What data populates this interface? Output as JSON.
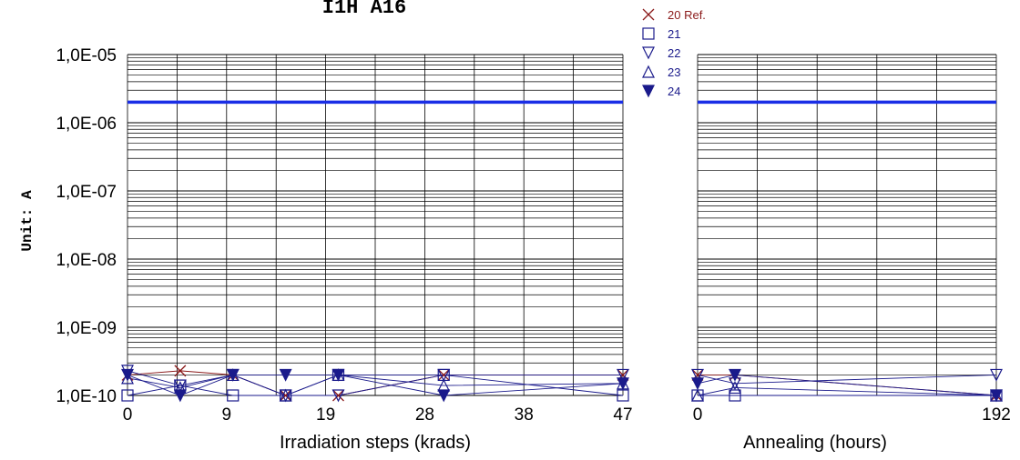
{
  "chart_data": {
    "type": "scatter",
    "title": "I1H A16",
    "ylabel": "Unit: A",
    "y_scale": "log",
    "ylim": [
      1e-10,
      1e-05
    ],
    "y_ticks": [
      {
        "value": 1e-05,
        "label": "1,0E-05"
      },
      {
        "value": 1e-06,
        "label": "1,0E-06"
      },
      {
        "value": 1e-07,
        "label": "1,0E-07"
      },
      {
        "value": 1e-08,
        "label": "1,0E-08"
      },
      {
        "value": 1e-09,
        "label": "1,0E-09"
      },
      {
        "value": 1e-10,
        "label": "1,0E-10"
      }
    ],
    "grid": true,
    "legend_position": "top-center",
    "limit_line": {
      "value": 2e-06,
      "color": "#1a2ee6"
    },
    "panels": [
      {
        "id": "irradiation",
        "xlabel": "Irradiation steps   (krads)",
        "xlim": [
          0,
          47
        ],
        "x_ticks": [
          {
            "value": 0,
            "label": "0"
          },
          {
            "value": 9.4,
            "label": "9"
          },
          {
            "value": 18.8,
            "label": "19"
          },
          {
            "value": 28.2,
            "label": "28"
          },
          {
            "value": 37.6,
            "label": "38"
          },
          {
            "value": 47,
            "label": "47"
          }
        ],
        "x": [
          0,
          5,
          10,
          15,
          20,
          30,
          47
        ],
        "series": [
          {
            "name": "20 Ref.",
            "marker": "x",
            "color": "#8b1a1a",
            "values": [
              2e-10,
              2.3e-10,
              2e-10,
              1e-10,
              1e-10,
              2e-10,
              2e-10
            ]
          },
          {
            "name": "21",
            "marker": "square",
            "color": "#1a1a8b",
            "values": [
              1e-10,
              1.4e-10,
              1e-10,
              1e-10,
              2e-10,
              2e-10,
              1e-10
            ]
          },
          {
            "name": "22",
            "marker": "triangle-down",
            "color": "#1a1a8b",
            "values": [
              2.3e-10,
              1.4e-10,
              2e-10,
              1e-10,
              1e-10,
              2e-10,
              2e-10
            ]
          },
          {
            "name": "23",
            "marker": "triangle-up",
            "color": "#1a1a8b",
            "values": [
              1.8e-10,
              1.3e-10,
              2e-10,
              1e-10,
              2e-10,
              1.4e-10,
              1.5e-10
            ]
          },
          {
            "name": "24",
            "marker": "triangle-down-filled",
            "color": "#1a1a8b",
            "values": [
              2e-10,
              1e-10,
              2e-10,
              2e-10,
              2e-10,
              1e-10,
              1.5e-10
            ]
          }
        ]
      },
      {
        "id": "annealing",
        "xlabel": "Annealing   (hours)",
        "xlim": [
          0,
          192
        ],
        "x_ticks": [
          {
            "value": 0,
            "label": "0"
          },
          {
            "value": 192,
            "label": "192"
          }
        ],
        "x": [
          0,
          24,
          192
        ],
        "series": [
          {
            "name": "20 Ref.",
            "marker": "x",
            "color": "#8b1a1a",
            "values": [
              2e-10,
              2e-10,
              1e-10
            ]
          },
          {
            "name": "21",
            "marker": "square",
            "color": "#1a1a8b",
            "values": [
              1e-10,
              1e-10,
              1e-10
            ]
          },
          {
            "name": "22",
            "marker": "triangle-down",
            "color": "#1a1a8b",
            "values": [
              2e-10,
              1.5e-10,
              2e-10
            ]
          },
          {
            "name": "23",
            "marker": "triangle-up",
            "color": "#1a1a8b",
            "values": [
              1e-10,
              1.3e-10,
              1e-10
            ]
          },
          {
            "name": "24",
            "marker": "triangle-down-filled",
            "color": "#1a1a8b",
            "values": [
              1.5e-10,
              2e-10,
              1e-10
            ]
          }
        ]
      }
    ]
  }
}
